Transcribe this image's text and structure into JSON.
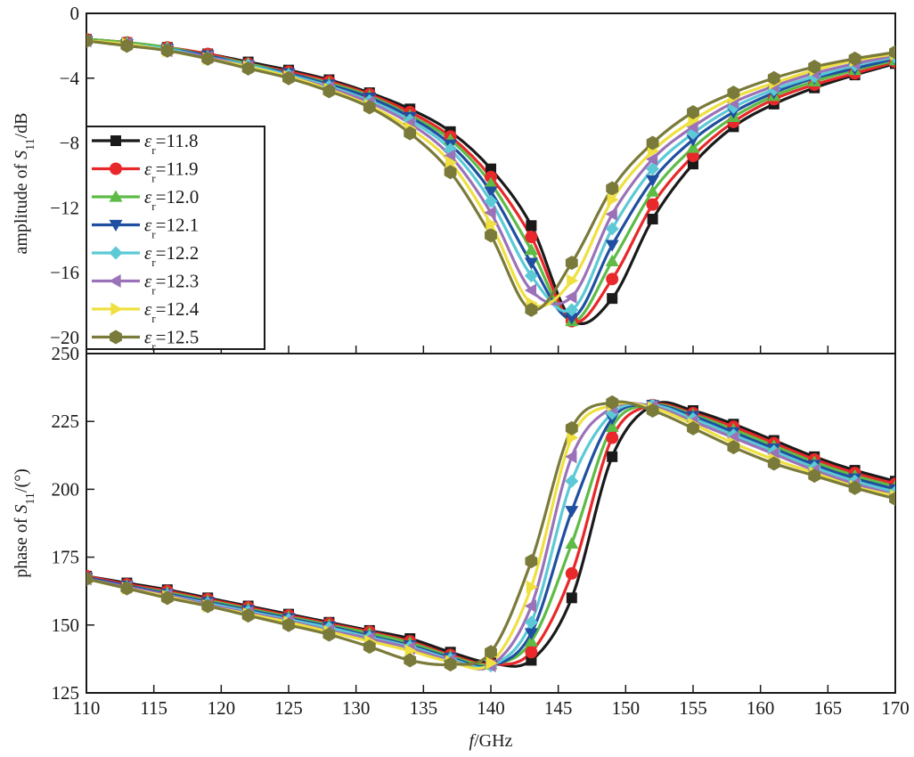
{
  "chart_data": [
    {
      "type": "line",
      "ylabel": "amplitude of S11/dB",
      "ylim": [
        -21,
        0
      ],
      "yticks": [
        0,
        -4,
        -8,
        -12,
        -16,
        -20
      ],
      "ytick_labels": [
        "0",
        "−4",
        "−8",
        "−12",
        "−16",
        "−20"
      ],
      "xlim": [
        110,
        170
      ],
      "grid": false,
      "legend": "left-bottom",
      "series": [
        {
          "name": "εr=11.8",
          "color": "#1a1a1a",
          "marker": "square",
          "x": [
            110,
            113,
            116,
            119,
            122,
            125,
            128,
            131,
            134,
            137,
            140,
            143,
            146,
            149,
            152,
            155,
            158,
            161,
            164,
            167,
            170
          ],
          "y": [
            -1.6,
            -1.8,
            -2.1,
            -2.5,
            -3.0,
            -3.5,
            -4.1,
            -4.9,
            -5.9,
            -7.3,
            -9.6,
            -13.1,
            -18.9,
            -17.6,
            -12.7,
            -9.3,
            -7.0,
            -5.6,
            -4.6,
            -3.8,
            -3.1
          ]
        },
        {
          "name": "εr=11.9",
          "color": "#e8282a",
          "marker": "circle",
          "x": [
            110,
            113,
            116,
            119,
            122,
            125,
            128,
            131,
            134,
            137,
            140,
            143,
            146,
            149,
            152,
            155,
            158,
            161,
            164,
            167,
            170
          ],
          "y": [
            -1.6,
            -1.8,
            -2.1,
            -2.5,
            -3.1,
            -3.6,
            -4.2,
            -5.0,
            -6.1,
            -7.6,
            -10.1,
            -13.8,
            -19.0,
            -16.4,
            -11.8,
            -8.8,
            -6.7,
            -5.3,
            -4.4,
            -3.7,
            -3.0
          ]
        },
        {
          "name": "εr=12.0",
          "color": "#5dbb46",
          "marker": "triangle-up",
          "x": [
            110,
            113,
            116,
            119,
            122,
            125,
            128,
            131,
            134,
            137,
            140,
            143,
            146,
            149,
            152,
            155,
            158,
            161,
            164,
            167,
            170
          ],
          "y": [
            -1.6,
            -1.8,
            -2.1,
            -2.6,
            -3.1,
            -3.7,
            -4.3,
            -5.1,
            -6.3,
            -7.8,
            -10.5,
            -14.6,
            -19.0,
            -15.3,
            -11.0,
            -8.3,
            -6.4,
            -5.1,
            -4.2,
            -3.5,
            -2.9
          ]
        },
        {
          "name": "εr=12.1",
          "color": "#1f4fa0",
          "marker": "triangle-down",
          "x": [
            110,
            113,
            116,
            119,
            122,
            125,
            128,
            131,
            134,
            137,
            140,
            143,
            146,
            149,
            152,
            155,
            158,
            161,
            164,
            167,
            170
          ],
          "y": [
            -1.7,
            -1.9,
            -2.2,
            -2.6,
            -3.2,
            -3.7,
            -4.4,
            -5.2,
            -6.4,
            -8.1,
            -11.0,
            -15.4,
            -18.8,
            -14.3,
            -10.3,
            -7.8,
            -6.1,
            -4.9,
            -4.0,
            -3.4,
            -2.8
          ]
        },
        {
          "name": "εr=12.2",
          "color": "#5cc9d6",
          "marker": "diamond",
          "x": [
            110,
            113,
            116,
            119,
            122,
            125,
            128,
            131,
            134,
            137,
            140,
            143,
            146,
            149,
            152,
            155,
            158,
            161,
            164,
            167,
            170
          ],
          "y": [
            -1.7,
            -1.9,
            -2.2,
            -2.7,
            -3.2,
            -3.8,
            -4.5,
            -5.4,
            -6.6,
            -8.4,
            -11.6,
            -16.2,
            -18.3,
            -13.3,
            -9.6,
            -7.4,
            -5.8,
            -4.7,
            -3.9,
            -3.2,
            -2.7
          ]
        },
        {
          "name": "εr=12.3",
          "color": "#9b72b8",
          "marker": "triangle-left",
          "x": [
            110,
            113,
            116,
            119,
            122,
            125,
            128,
            131,
            134,
            137,
            140,
            143,
            146,
            149,
            152,
            155,
            158,
            161,
            164,
            167,
            170
          ],
          "y": [
            -1.7,
            -1.9,
            -2.3,
            -2.7,
            -3.3,
            -3.9,
            -4.6,
            -5.5,
            -6.8,
            -8.8,
            -12.3,
            -17.1,
            -17.5,
            -12.4,
            -9.0,
            -7.0,
            -5.5,
            -4.5,
            -3.7,
            -3.1,
            -2.6
          ]
        },
        {
          "name": "εr=12.4",
          "color": "#efe040",
          "marker": "triangle-right",
          "x": [
            110,
            113,
            116,
            119,
            122,
            125,
            128,
            131,
            134,
            137,
            140,
            143,
            146,
            149,
            152,
            155,
            158,
            161,
            164,
            167,
            170
          ],
          "y": [
            -1.7,
            -1.9,
            -2.3,
            -2.8,
            -3.3,
            -3.9,
            -4.7,
            -5.7,
            -7.1,
            -9.2,
            -13.0,
            -17.9,
            -16.5,
            -11.5,
            -8.5,
            -6.6,
            -5.2,
            -4.3,
            -3.5,
            -2.9,
            -2.5
          ]
        },
        {
          "name": "εr=12.5",
          "color": "#7a7a3a",
          "marker": "hexagon",
          "x": [
            110,
            113,
            116,
            119,
            122,
            125,
            128,
            131,
            134,
            137,
            140,
            143,
            146,
            149,
            152,
            155,
            158,
            161,
            164,
            167,
            170
          ],
          "y": [
            -1.7,
            -2.0,
            -2.3,
            -2.8,
            -3.4,
            -4.0,
            -4.8,
            -5.8,
            -7.4,
            -9.8,
            -13.7,
            -18.3,
            -15.4,
            -10.8,
            -8.0,
            -6.1,
            -4.9,
            -4.0,
            -3.3,
            -2.8,
            -2.4
          ]
        }
      ]
    },
    {
      "type": "line",
      "xlabel": "f/GHz",
      "ylabel": "phase of S11/(°)",
      "ylim": [
        125,
        250
      ],
      "yticks": [
        125,
        150,
        175,
        200,
        225,
        250
      ],
      "ytick_labels": [
        "125",
        "150",
        "175",
        "200",
        "225",
        "250"
      ],
      "xlim": [
        110,
        170
      ],
      "xticks": [
        110,
        115,
        120,
        125,
        130,
        135,
        140,
        145,
        150,
        155,
        160,
        165,
        170
      ],
      "xtick_labels": [
        "110",
        "115",
        "120",
        "125",
        "130",
        "135",
        "140",
        "145",
        "150",
        "155",
        "160",
        "165",
        "170"
      ],
      "grid": false,
      "series": [
        {
          "name": "εr=11.8",
          "color": "#1a1a1a",
          "marker": "square",
          "x": [
            110,
            113,
            116,
            119,
            122,
            125,
            128,
            131,
            134,
            137,
            140,
            143,
            146,
            149,
            152,
            155,
            158,
            161,
            164,
            167,
            170
          ],
          "y": [
            168,
            165.5,
            163,
            160,
            157,
            154,
            151,
            148,
            145,
            140,
            136,
            137,
            160,
            212,
            231,
            229,
            224,
            218,
            212,
            207,
            203
          ]
        },
        {
          "name": "εr=11.9",
          "color": "#e8282a",
          "marker": "circle",
          "x": [
            110,
            113,
            116,
            119,
            122,
            125,
            128,
            131,
            134,
            137,
            140,
            143,
            146,
            149,
            152,
            155,
            158,
            161,
            164,
            167,
            170
          ],
          "y": [
            168,
            165,
            162.5,
            159.5,
            156.5,
            153.5,
            150.5,
            147.5,
            144,
            139,
            135.5,
            140,
            169,
            219,
            231,
            228,
            223,
            217,
            211,
            206,
            202
          ]
        },
        {
          "name": "εr=12.0",
          "color": "#5dbb46",
          "marker": "triangle-up",
          "x": [
            110,
            113,
            116,
            119,
            122,
            125,
            128,
            131,
            134,
            137,
            140,
            143,
            146,
            149,
            152,
            155,
            158,
            161,
            164,
            167,
            170
          ],
          "y": [
            167.5,
            164.5,
            162,
            159,
            156,
            153,
            150,
            147,
            143.5,
            138.5,
            135.5,
            144,
            180,
            223,
            231,
            227.5,
            222,
            216,
            210,
            205,
            201
          ]
        },
        {
          "name": "εr=12.1",
          "color": "#1f4fa0",
          "marker": "triangle-down",
          "x": [
            110,
            113,
            116,
            119,
            122,
            125,
            128,
            131,
            134,
            137,
            140,
            143,
            146,
            149,
            152,
            155,
            158,
            161,
            164,
            167,
            170
          ],
          "y": [
            167.5,
            164.5,
            161.5,
            158.5,
            155.5,
            152.5,
            149.5,
            146,
            142.5,
            138,
            135,
            147,
            192,
            226,
            231,
            227,
            221,
            215,
            209,
            204,
            200
          ]
        },
        {
          "name": "εr=12.2",
          "color": "#5cc9d6",
          "marker": "diamond",
          "x": [
            110,
            113,
            116,
            119,
            122,
            125,
            128,
            131,
            134,
            137,
            140,
            143,
            146,
            149,
            152,
            155,
            158,
            161,
            164,
            167,
            170
          ],
          "y": [
            167,
            164,
            161,
            158,
            155,
            152,
            149,
            145.5,
            142,
            137.5,
            135,
            151,
            203,
            228,
            231,
            226,
            220,
            214,
            208,
            203,
            199
          ]
        },
        {
          "name": "εr=12.3",
          "color": "#9b72b8",
          "marker": "triangle-left",
          "x": [
            110,
            113,
            116,
            119,
            122,
            125,
            128,
            131,
            134,
            137,
            140,
            143,
            146,
            149,
            152,
            155,
            158,
            161,
            164,
            167,
            170
          ],
          "y": [
            167,
            164,
            161,
            157.5,
            154.5,
            151.5,
            148,
            145,
            141.5,
            137,
            135,
            157,
            212,
            230,
            230.5,
            225,
            219,
            213,
            207,
            202,
            198
          ]
        },
        {
          "name": "εr=12.4",
          "color": "#efe040",
          "marker": "triangle-right",
          "x": [
            110,
            113,
            116,
            119,
            122,
            125,
            128,
            131,
            134,
            137,
            140,
            143,
            146,
            149,
            152,
            155,
            158,
            161,
            164,
            167,
            170
          ],
          "y": [
            167,
            163.5,
            160.5,
            157,
            154,
            151,
            147.5,
            144,
            140.5,
            136.5,
            136,
            164,
            219,
            231,
            230,
            224,
            217,
            211,
            206,
            201,
            197.5
          ]
        },
        {
          "name": "εr=12.5",
          "color": "#7a7a3a",
          "marker": "hexagon",
          "x": [
            110,
            113,
            116,
            119,
            122,
            125,
            128,
            131,
            134,
            137,
            140,
            143,
            146,
            149,
            152,
            155,
            158,
            161,
            164,
            167,
            170
          ],
          "y": [
            167,
            163.5,
            160,
            157,
            153.5,
            150,
            146.5,
            142,
            137,
            135.5,
            140,
            173.5,
            222.5,
            232,
            229,
            222.5,
            215.5,
            209.5,
            205,
            200.5,
            196.5
          ]
        }
      ]
    }
  ]
}
